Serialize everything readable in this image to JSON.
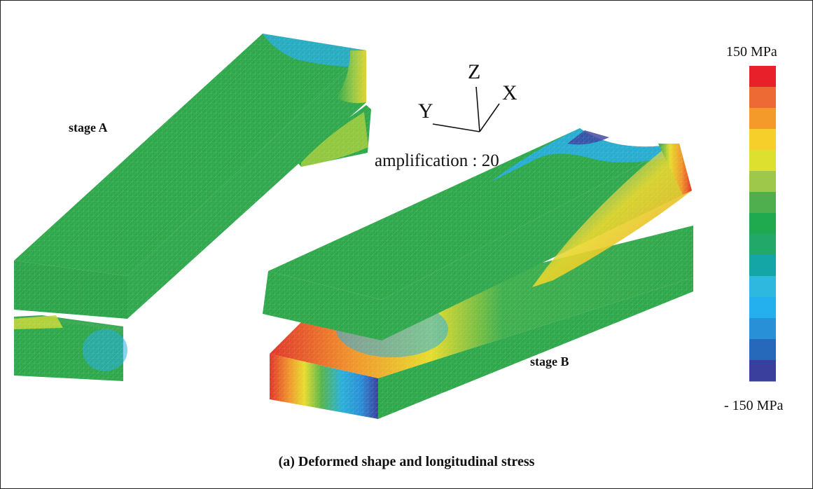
{
  "labels": {
    "stage_a": "stage A",
    "stage_b": "stage B",
    "amplification": "amplification : 20",
    "caption": "(a) Deformed shape and longitudinal stress"
  },
  "axes": {
    "z": "Z",
    "x": "X",
    "y": "Y"
  },
  "colorbar": {
    "max_label": "150 MPa",
    "min_label": "- 150 MPa",
    "bands_top_to_bottom": [
      "#e8202a",
      "#ee6a35",
      "#f39a2a",
      "#f7cf2a",
      "#dde02e",
      "#9ec84a",
      "#4fae4e",
      "#1faa4f",
      "#22a96a",
      "#14a6a6",
      "#2fb8df",
      "#24b0ee",
      "#2790d6",
      "#2668b9",
      "#3a3f9e"
    ]
  },
  "stress_colors": {
    "neutral": "#2fa74b",
    "compression": "#27aee8",
    "tension": "#e8d72c",
    "high_tension": "#e8432a",
    "deep_compression": "#3a3f9e"
  }
}
